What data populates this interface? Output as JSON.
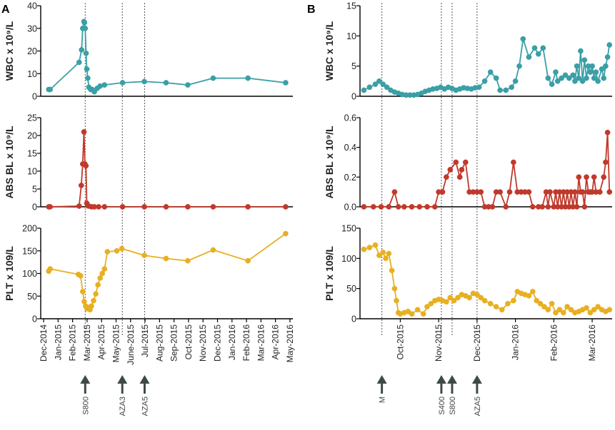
{
  "chart_data": [
    {
      "panel": "A",
      "type": "line",
      "x_unit": "month index (0 = Dec-2014)",
      "x_tick_labels": [
        "Dec-2014",
        "Jan-2015",
        "Feb-2015",
        "Mar-2015",
        "Apr-2015",
        "May-2015",
        "June-2015",
        "Jul-2015",
        "Aug-2015",
        "Sep-2015",
        "Oct-2015",
        "Nov-2015",
        "Dec-2015",
        "Jan-2016",
        "Feb-2016",
        "Mar-2016",
        "Apr-2016",
        "May-2016"
      ],
      "x_range": [
        -0.2,
        17.2
      ],
      "treatment_lines": [
        2.87,
        5.43,
        6.97
      ],
      "treatments": [
        {
          "label": "S800",
          "x": 2.87
        },
        {
          "label": "AZA3",
          "x": 5.43
        },
        {
          "label": "AZA5",
          "x": 6.97
        }
      ],
      "series": [
        {
          "name": "WBC",
          "ylabel": "WBC x 10⁹/L",
          "color": "#3a9fa6",
          "ylim": [
            0,
            40
          ],
          "yticks": [
            0,
            10,
            20,
            30,
            40
          ],
          "x": [
            0.35,
            0.45,
            2.45,
            2.62,
            2.7,
            2.78,
            2.82,
            2.87,
            2.93,
            2.98,
            3.05,
            3.12,
            3.25,
            3.35,
            3.5,
            3.7,
            3.9,
            4.2,
            5.45,
            6.95,
            8.45,
            9.95,
            11.7,
            14.1,
            16.7
          ],
          "y": [
            3,
            3,
            15,
            20.5,
            30,
            33,
            32.5,
            30,
            19,
            12,
            8,
            4,
            3,
            3,
            2,
            3.5,
            4.5,
            5,
            6,
            6.5,
            6,
            5,
            8,
            8,
            6
          ]
        },
        {
          "name": "ABS BL",
          "ylabel": "ABS BL x 10⁹/L",
          "color": "#c0392b",
          "ylim": [
            0,
            25
          ],
          "yticks": [
            0,
            5,
            10,
            15,
            20,
            25
          ],
          "x": [
            0.35,
            0.45,
            2.45,
            2.6,
            2.7,
            2.78,
            2.85,
            2.92,
            2.98,
            3.05,
            3.12,
            3.3,
            3.5,
            3.8,
            4.2,
            5.45,
            6.95,
            8.45,
            9.95,
            11.7,
            14.1,
            16.7
          ],
          "y": [
            0,
            0,
            0.2,
            6,
            12,
            21,
            12,
            11.5,
            1,
            0.3,
            0.2,
            0,
            0,
            0,
            0,
            0,
            0,
            0,
            0,
            0,
            0,
            0
          ]
        },
        {
          "name": "PLT",
          "ylabel": "PLT x 109/L",
          "color": "#e8b020",
          "ylim": [
            0,
            200
          ],
          "yticks": [
            0,
            50,
            100,
            150,
            200
          ],
          "x": [
            0.35,
            0.45,
            2.4,
            2.55,
            2.7,
            2.8,
            2.9,
            3.0,
            3.1,
            3.2,
            3.3,
            3.45,
            3.6,
            3.75,
            3.9,
            4.05,
            4.2,
            4.4,
            5.05,
            5.4,
            6.95,
            8.45,
            9.95,
            11.7,
            14.1,
            16.7
          ],
          "y": [
            105,
            110,
            98,
            95,
            60,
            38,
            28,
            22,
            25,
            20,
            28,
            40,
            55,
            75,
            90,
            100,
            110,
            148,
            150,
            155,
            140,
            133,
            128,
            152,
            128,
            188
          ]
        }
      ]
    },
    {
      "panel": "B",
      "type": "line",
      "x_unit": "month index (0 = Oct-2015)",
      "x_tick_labels": [
        "Oct-2015",
        "Nov-2015",
        "Dec-2015",
        "Jan-2016",
        "Feb-2016",
        "Mar-2016"
      ],
      "x_range": [
        -1.05,
        5.52
      ],
      "treatment_lines": [
        -0.48,
        1.07,
        1.35,
        2.0
      ],
      "treatments": [
        {
          "label": "M",
          "x": -0.48
        },
        {
          "label": "S400",
          "x": 1.07
        },
        {
          "label": "S800",
          "x": 1.35
        },
        {
          "label": "AZA5",
          "x": 2.0
        }
      ],
      "series": [
        {
          "name": "WBC",
          "ylabel": "WBC x 10⁹/L",
          "color": "#3a9fa6",
          "ylim": [
            0,
            15
          ],
          "yticks": [
            0,
            5,
            10,
            15
          ],
          "x": [
            -0.95,
            -0.8,
            -0.65,
            -0.55,
            -0.45,
            -0.35,
            -0.25,
            -0.15,
            -0.05,
            0.05,
            0.15,
            0.25,
            0.35,
            0.45,
            0.55,
            0.65,
            0.75,
            0.85,
            0.95,
            1.05,
            1.15,
            1.25,
            1.35,
            1.45,
            1.55,
            1.65,
            1.75,
            1.85,
            1.95,
            2.05,
            2.2,
            2.35,
            2.5,
            2.6,
            2.75,
            2.9,
            3.0,
            3.1,
            3.2,
            3.35,
            3.5,
            3.6,
            3.72,
            3.85,
            3.95,
            4.05,
            4.1,
            4.2,
            4.3,
            4.4,
            4.5,
            4.55,
            4.6,
            4.65,
            4.7,
            4.75,
            4.8,
            4.85,
            4.9,
            4.95,
            5.0,
            5.05,
            5.1,
            5.15,
            5.25,
            5.3,
            5.35,
            5.4,
            5.45
          ],
          "y": [
            1,
            1.5,
            2,
            2.5,
            2,
            1.5,
            1,
            0.7,
            0.5,
            0.3,
            0.2,
            0.2,
            0.2,
            0.3,
            0.5,
            0.8,
            1,
            1.2,
            1.3,
            1.5,
            1.2,
            1.5,
            1.3,
            1,
            1.2,
            1.4,
            1.3,
            1.2,
            1.4,
            1.5,
            2.5,
            4,
            3,
            1,
            1,
            1.5,
            2.5,
            5,
            9.5,
            6.5,
            8,
            7,
            8,
            3,
            2,
            4,
            2.5,
            3,
            3.5,
            3,
            3.5,
            2.5,
            5,
            3,
            7.5,
            2.5,
            6,
            3,
            5,
            4,
            5,
            3,
            4,
            2.5,
            4.5,
            3,
            5,
            6.5,
            8.5
          ]
        },
        {
          "name": "ABS BL",
          "ylabel": "ABS BL x 10⁹/L",
          "color": "#c0392b",
          "ylim": [
            0,
            0.6
          ],
          "yticks": [
            0,
            0.2,
            0.4,
            0.6
          ],
          "ytick_labels": [
            "0.0",
            "0.2",
            "0.4",
            "0.6"
          ],
          "x": [
            -0.95,
            -0.7,
            -0.5,
            -0.3,
            -0.15,
            -0.05,
            0.1,
            0.3,
            0.5,
            0.7,
            0.9,
            1.0,
            1.1,
            1.2,
            1.3,
            1.45,
            1.55,
            1.6,
            1.7,
            1.8,
            1.9,
            2.0,
            2.1,
            2.2,
            2.3,
            2.4,
            2.5,
            2.6,
            2.75,
            2.85,
            2.95,
            3.05,
            3.15,
            3.25,
            3.35,
            3.45,
            3.6,
            3.7,
            3.8,
            3.85,
            3.9,
            4.0,
            4.05,
            4.1,
            4.15,
            4.2,
            4.25,
            4.3,
            4.35,
            4.4,
            4.45,
            4.5,
            4.55,
            4.6,
            4.65,
            4.7,
            4.75,
            4.8,
            4.85,
            4.9,
            4.95,
            5.0,
            5.05,
            5.1,
            5.2,
            5.3,
            5.35,
            5.4,
            5.45
          ],
          "y": [
            0,
            0,
            0,
            0,
            0.1,
            0,
            0,
            0,
            0,
            0,
            0,
            0.1,
            0.1,
            0.2,
            0.25,
            0.3,
            0.2,
            0.25,
            0.3,
            0.1,
            0.1,
            0.1,
            0.1,
            0,
            0,
            0,
            0.1,
            0.1,
            0,
            0.1,
            0.3,
            0.1,
            0.1,
            0.1,
            0.1,
            0,
            0,
            0,
            0.1,
            0,
            0.1,
            0,
            0.1,
            0,
            0.1,
            0,
            0.1,
            0,
            0.1,
            0,
            0.1,
            0,
            0.1,
            0,
            0.2,
            0.1,
            0.1,
            0,
            0.2,
            0.1,
            0.1,
            0.1,
            0.2,
            0.1,
            0.1,
            0.2,
            0.3,
            0.5,
            0.1
          ]
        },
        {
          "name": "PLT",
          "ylabel": "PLT x 109/L",
          "color": "#e8b020",
          "ylim": [
            0,
            150
          ],
          "yticks": [
            0,
            50,
            100,
            150
          ],
          "x": [
            -0.95,
            -0.8,
            -0.65,
            -0.55,
            -0.45,
            -0.38,
            -0.3,
            -0.22,
            -0.15,
            -0.1,
            -0.05,
            0.0,
            0.1,
            0.2,
            0.3,
            0.45,
            0.6,
            0.7,
            0.8,
            0.9,
            1.0,
            1.1,
            1.2,
            1.3,
            1.4,
            1.5,
            1.6,
            1.7,
            1.8,
            1.9,
            2.0,
            2.1,
            2.2,
            2.35,
            2.5,
            2.65,
            2.8,
            2.95,
            3.05,
            3.15,
            3.25,
            3.35,
            3.45,
            3.55,
            3.65,
            3.75,
            3.85,
            3.95,
            4.05,
            4.15,
            4.25,
            4.35,
            4.45,
            4.55,
            4.65,
            4.75,
            4.85,
            4.95,
            5.05,
            5.15,
            5.25,
            5.35,
            5.45
          ],
          "y": [
            115,
            118,
            122,
            105,
            110,
            100,
            108,
            80,
            50,
            30,
            10,
            8,
            10,
            12,
            8,
            15,
            8,
            20,
            25,
            30,
            32,
            30,
            28,
            35,
            30,
            35,
            40,
            38,
            35,
            42,
            40,
            35,
            30,
            25,
            20,
            15,
            25,
            30,
            45,
            42,
            40,
            38,
            45,
            30,
            25,
            20,
            15,
            25,
            10,
            15,
            10,
            20,
            15,
            10,
            12,
            15,
            18,
            10,
            15,
            20,
            15,
            12,
            15
          ]
        }
      ]
    }
  ]
}
